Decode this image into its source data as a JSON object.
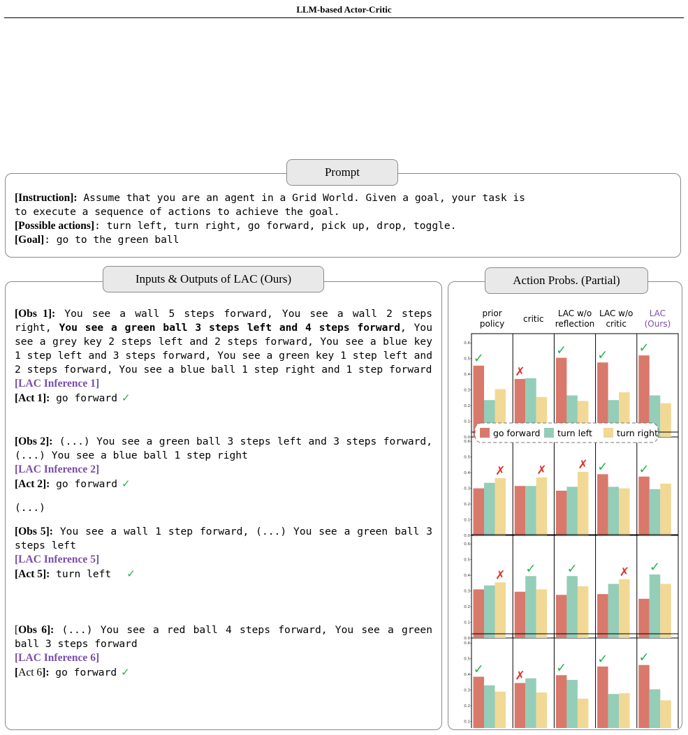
{
  "header": {
    "title": "LLM-based Actor-Critic"
  },
  "prompt": {
    "tab": "Prompt",
    "instruction_label": "[Instruction]:",
    "instruction_line1": "Assume that you are an agent in a Grid World. Given a goal, your task is",
    "instruction_line2": "to execute a sequence of actions to achieve the goal.",
    "actions_label": "[Possible actions]",
    "actions_text": ": turn left, turn right, go forward, pick up, drop, toggle.",
    "goal_label": "[Goal]",
    "goal_text": ": go to the green ball"
  },
  "io": {
    "tab": "Inputs & Outputs of LAC (Ours)",
    "obs1_label": "[Obs 1]:",
    "obs1_pre": " You see a wall 5 steps forward, You see a wall 2 steps right, ",
    "obs1_bold": "You see a green ball 3 steps left and 4 steps forward",
    "obs1_post": ", You see a grey key 2 steps left and 2 steps forward, You see a blue key 1 step left and 3 steps forward, You see a green key 1 step left and 2 steps forward, You see a blue ball 1 step right and 1 step forward",
    "inf1": "[LAC Inference 1]",
    "act1_label": "[Act 1]:",
    "act1_text": " go forward",
    "obs2_label": "[Obs 2]:",
    "obs2_text": " (...) You see a green ball 3 steps left and 3 steps forward, (...) You see a blue ball 1 step right",
    "inf2": "[LAC Inference 2]",
    "act2_label": "[Act 2]:",
    "act2_text": " go forward",
    "ellipsis": "(...)",
    "obs5_label": "[Obs 5]:",
    "obs5_text": " You see a wall 1 step forward, (...) You see a green ball 3 steps left",
    "inf5": "[LAC Inference 5]",
    "act5_label": "[Act 5]:",
    "act5_text": " turn left",
    "obs6_label_open": "[",
    "obs6_label_bold": "Obs 6]:",
    "obs6_text": " (...) You see a red ball 4 steps forward, You see a green ball 3 steps forward",
    "inf6": "[LAC Inference 6]",
    "act6_label_open": "[",
    "act6_label_reg": "Act 6",
    "act6_label_close": "]:",
    "act6_text": " go forward",
    "check": "✓"
  },
  "probs": {
    "tab": "Action Probs. (Partial)"
  },
  "chart_data": {
    "type": "bar",
    "columns": [
      {
        "line1": "prior",
        "line2": "policy"
      },
      {
        "line1": "critic",
        "line2": ""
      },
      {
        "line1": "LAC w/o",
        "line2": "reflection"
      },
      {
        "line1": "LAC w/o",
        "line2": "critic"
      },
      {
        "line1": "LAC",
        "line2": "(Ours)"
      }
    ],
    "series": [
      {
        "name": "go forward",
        "color": "#d9796b"
      },
      {
        "name": "turn left",
        "color": "#94cdb8"
      },
      {
        "name": "turn right",
        "color": "#f1d995"
      }
    ],
    "yticks": [
      "0.0",
      "0.1",
      "0.2",
      "0.3",
      "0.4",
      "0.5",
      "0.6"
    ],
    "ylim": [
      0,
      0.65
    ],
    "marks": {
      "check": "✓",
      "cross": "✗"
    },
    "rows": [
      {
        "panels": [
          {
            "values": [
              0.455,
              0.235,
              0.305
            ],
            "mark": "check",
            "mark_bar": 0
          },
          {
            "values": [
              0.37,
              0.375,
              0.255
            ],
            "mark": "cross",
            "mark_bar": 0
          },
          {
            "values": [
              0.505,
              0.265,
              0.23
            ],
            "mark": "check",
            "mark_bar": 0
          },
          {
            "values": [
              0.475,
              0.235,
              0.285
            ],
            "mark": "check",
            "mark_bar": 0
          },
          {
            "values": [
              0.52,
              0.265,
              0.215
            ],
            "mark": "check",
            "mark_bar": 0
          }
        ]
      },
      {
        "panels": [
          {
            "values": [
              0.3,
              0.335,
              0.365
            ],
            "mark": "cross",
            "mark_bar": 2
          },
          {
            "values": [
              0.315,
              0.315,
              0.37
            ],
            "mark": "cross",
            "mark_bar": 2
          },
          {
            "values": [
              0.285,
              0.31,
              0.405
            ],
            "mark": "cross",
            "mark_bar": 2
          },
          {
            "values": [
              0.39,
              0.31,
              0.3
            ],
            "mark": "check",
            "mark_bar": 0
          },
          {
            "values": [
              0.375,
              0.295,
              0.33
            ],
            "mark": "check",
            "mark_bar": 0
          }
        ]
      },
      {
        "panels": [
          {
            "values": [
              0.31,
              0.335,
              0.355
            ],
            "mark": "cross",
            "mark_bar": 2
          },
          {
            "values": [
              0.295,
              0.395,
              0.31
            ],
            "mark": "check",
            "mark_bar": 1
          },
          {
            "values": [
              0.275,
              0.395,
              0.33
            ],
            "mark": "check",
            "mark_bar": 1
          },
          {
            "values": [
              0.28,
              0.345,
              0.375
            ],
            "mark": "cross",
            "mark_bar": 2
          },
          {
            "values": [
              0.25,
              0.405,
              0.345
            ],
            "mark": "check",
            "mark_bar": 1
          }
        ]
      },
      {
        "panels": [
          {
            "values": [
              0.385,
              0.33,
              0.29
            ],
            "mark": "check",
            "mark_bar": 0
          },
          {
            "values": [
              0.345,
              0.375,
              0.285
            ],
            "mark": "cross",
            "mark_bar": 0
          },
          {
            "values": [
              0.395,
              0.365,
              0.245
            ],
            "mark": "check",
            "mark_bar": 0
          },
          {
            "values": [
              0.45,
              0.275,
              0.28
            ],
            "mark": "check",
            "mark_bar": 0
          },
          {
            "values": [
              0.46,
              0.305,
              0.235
            ],
            "mark": "check",
            "mark_bar": 0
          }
        ]
      }
    ]
  }
}
